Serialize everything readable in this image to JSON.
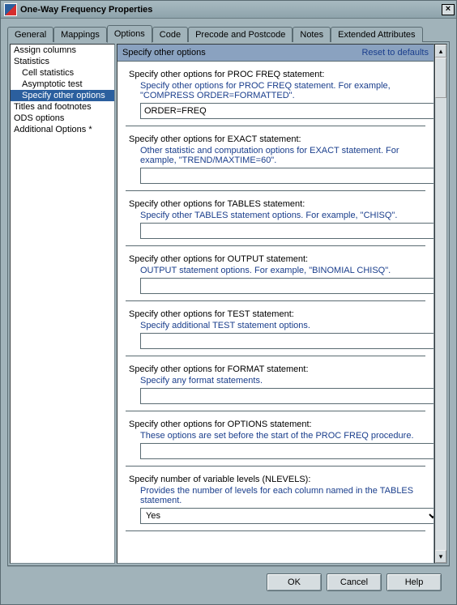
{
  "window": {
    "title": "One-Way Frequency Properties"
  },
  "tabs": [
    "General",
    "Mappings",
    "Options",
    "Code",
    "Precode and Postcode",
    "Notes",
    "Extended Attributes"
  ],
  "activeTab": "Options",
  "sidebar": {
    "items": [
      {
        "label": "Assign columns",
        "indent": 0
      },
      {
        "label": "Statistics",
        "indent": 0
      },
      {
        "label": "Cell statistics",
        "indent": 1
      },
      {
        "label": "Asymptotic test",
        "indent": 1
      },
      {
        "label": "Specify other options",
        "indent": 1,
        "selected": true
      },
      {
        "label": "Titles and footnotes",
        "indent": 0
      },
      {
        "label": "ODS options",
        "indent": 0
      },
      {
        "label": "Additional Options *",
        "indent": 0
      }
    ]
  },
  "panel": {
    "title": "Specify other options",
    "resetLabel": "Reset to defaults"
  },
  "sections": {
    "procfreq": {
      "label": "Specify other options for PROC FREQ statement:",
      "hint": "Specify other options for PROC FREQ statement. For example, \"COMPRESS ORDER=FORMATTED\".",
      "value": "ORDER=FREQ"
    },
    "exact": {
      "label": "Specify other options for EXACT statement:",
      "hint": "Other statistic and computation options for EXACT statement.  For example, \"TREND/MAXTIME=60\".",
      "value": ""
    },
    "tables": {
      "label": "Specify other options for TABLES statement:",
      "hint": "Specify other TABLES statement options.  For example, \"CHISQ\".",
      "value": ""
    },
    "output": {
      "label": "Specify other options for OUTPUT statement:",
      "hint": "OUTPUT statement options. For example, \"BINOMIAL CHISQ\".",
      "value": ""
    },
    "test": {
      "label": "Specify other options for TEST statement:",
      "hint": "Specify additional TEST statement options.",
      "value": ""
    },
    "format": {
      "label": "Specify other options for FORMAT statement:",
      "hint": "Specify any format statements.",
      "value": ""
    },
    "options": {
      "label": "Specify other options for OPTIONS statement:",
      "hint": "These options are set before the start of the PROC FREQ procedure.",
      "value": ""
    },
    "nlevels": {
      "label": "Specify number of variable levels (NLEVELS):",
      "hint": "Provides the number of levels for each column named in the TABLES statement.",
      "value": "Yes"
    }
  },
  "footer": {
    "ok": "OK",
    "cancel": "Cancel",
    "help": "Help"
  }
}
